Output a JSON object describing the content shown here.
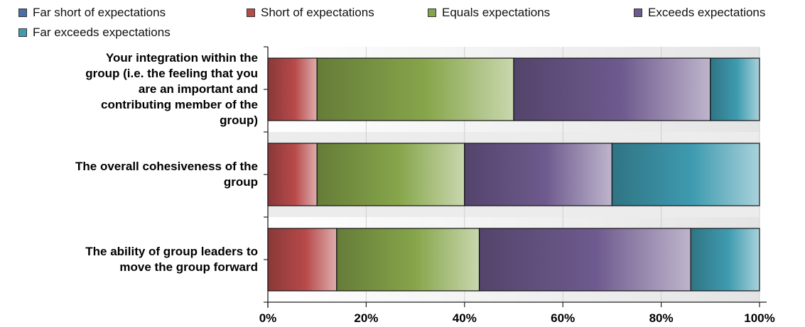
{
  "chart_data": {
    "type": "bar",
    "orientation": "horizontal",
    "stacked": true,
    "percent": true,
    "categories": [
      "Your integration within the group (i.e. the feeling that you are an important and contributing member of the group)",
      "The overall cohesiveness of the group",
      "The ability of group leaders to move the group forward"
    ],
    "category_lines": [
      [
        "Your integration within the",
        "group (i.e. the feeling that you",
        "are an important and",
        "contributing member of the",
        "group)"
      ],
      [
        "The overall cohesiveness of the",
        "group"
      ],
      [
        "The ability of group leaders to",
        "move the group forward"
      ]
    ],
    "series": [
      {
        "name": "Far short of expectations",
        "color": "#4a6fa5",
        "values": [
          0,
          0,
          0
        ]
      },
      {
        "name": "Short of expectations",
        "color": "#b84a4a",
        "values": [
          10,
          10,
          14
        ]
      },
      {
        "name": "Equals expectations",
        "color": "#86a54a",
        "values": [
          40,
          30,
          29
        ]
      },
      {
        "name": "Exceeds expectations",
        "color": "#6e5a8e",
        "values": [
          40,
          30,
          43
        ]
      },
      {
        "name": "Far exceeds expectations",
        "color": "#3f9bb0",
        "values": [
          10,
          30,
          14
        ]
      }
    ],
    "xticks": [
      "0%",
      "20%",
      "40%",
      "60%",
      "80%",
      "100%"
    ],
    "xlim": [
      0,
      100
    ],
    "legend_position": "top",
    "grid": true
  }
}
